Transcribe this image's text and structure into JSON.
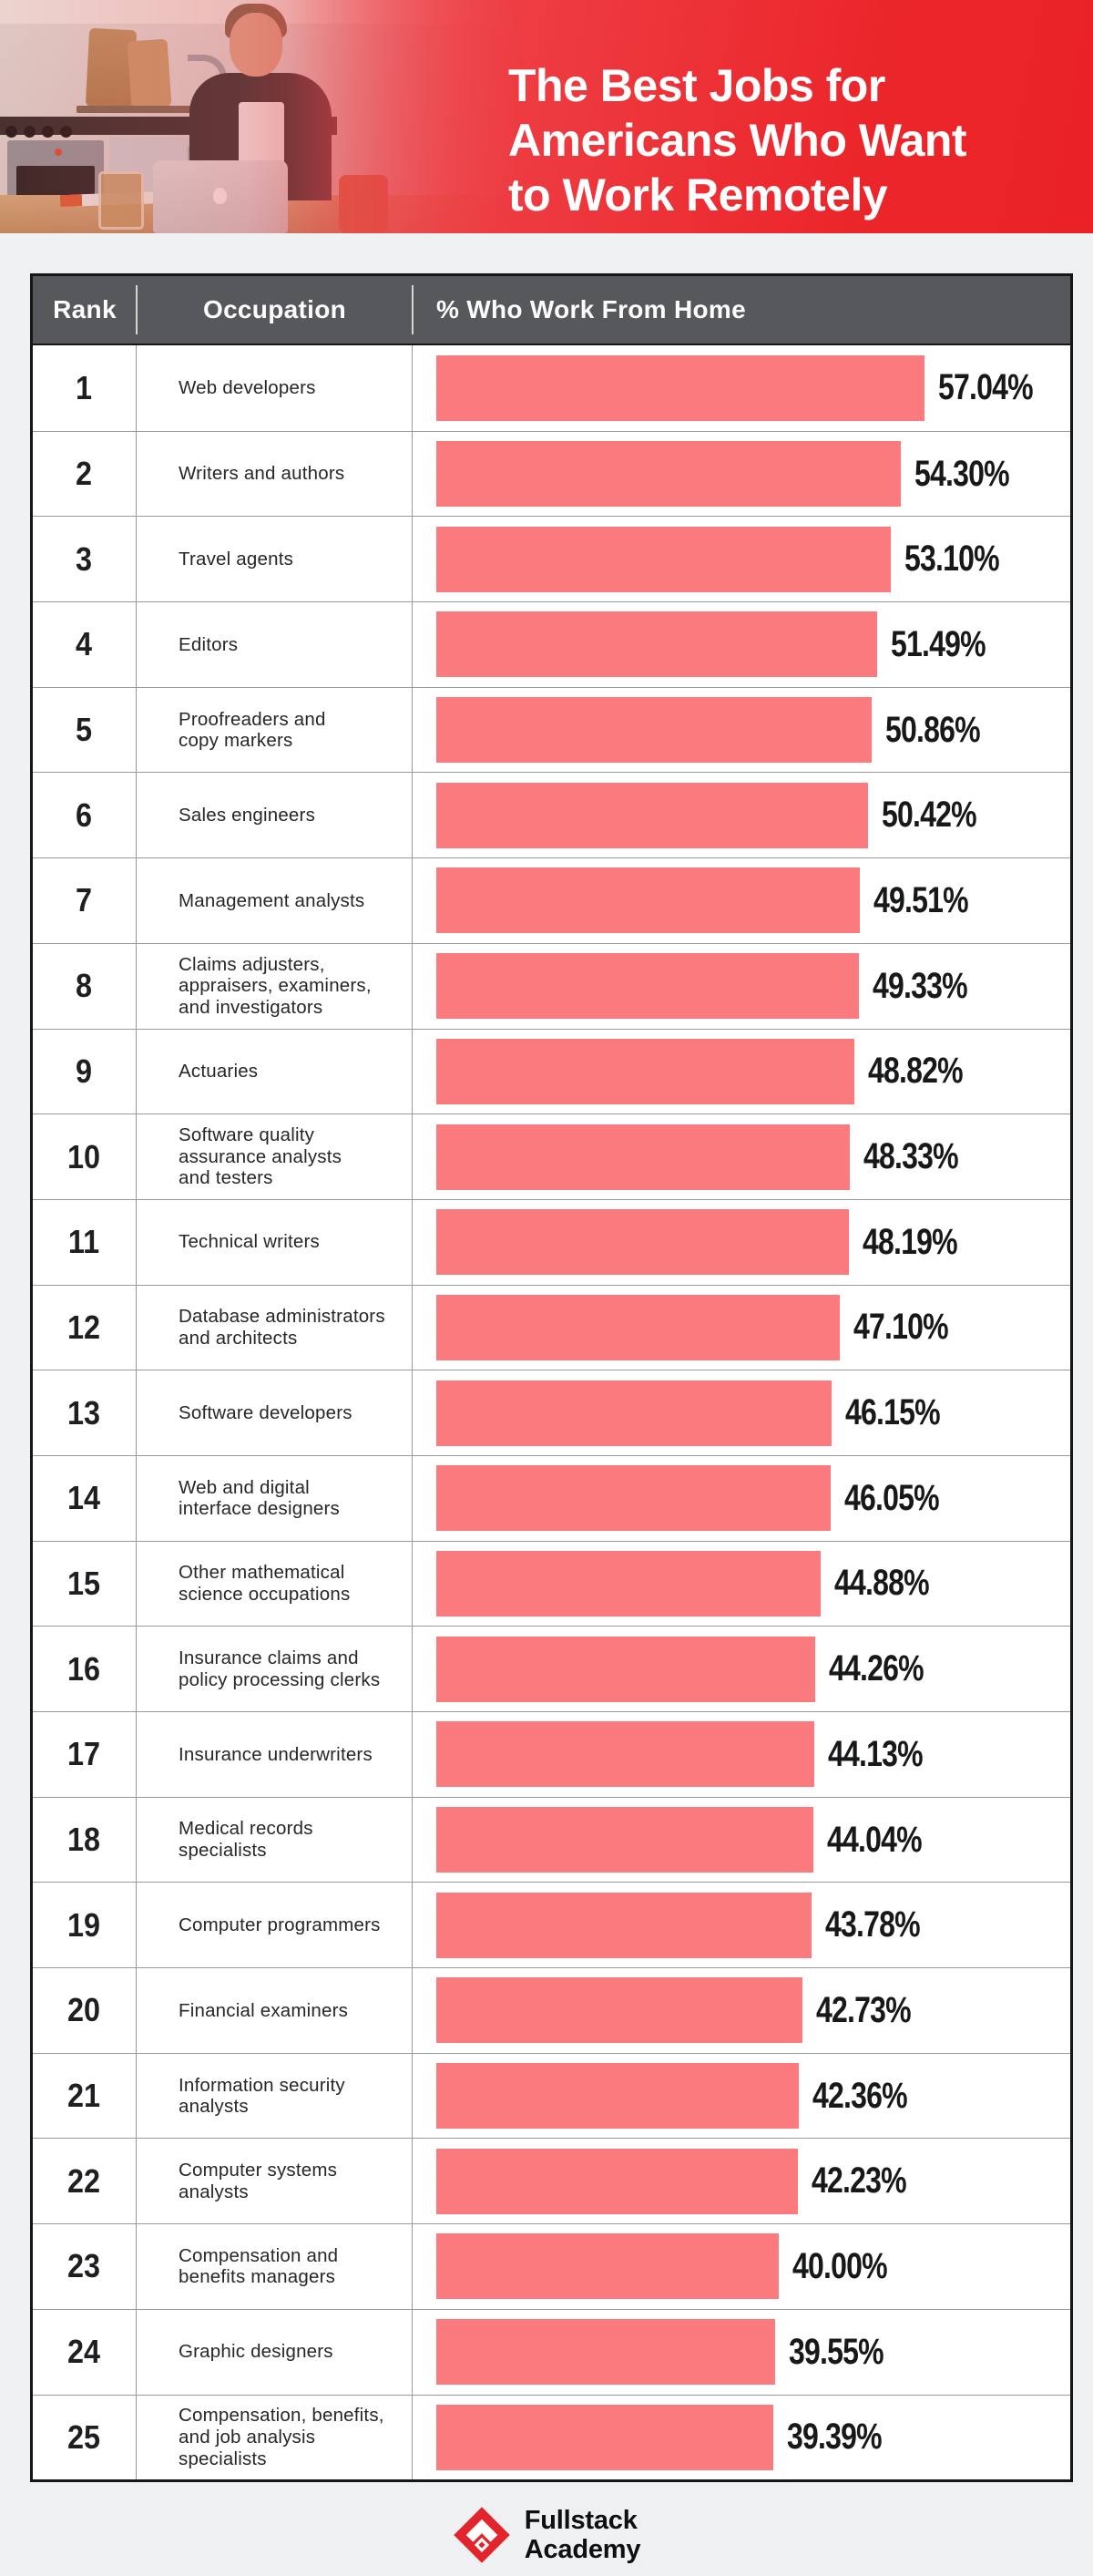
{
  "banner": {
    "title_lines": [
      "The Best Jobs for",
      "Americans Who Want",
      "to Work Remotely"
    ]
  },
  "table": {
    "header": {
      "rank": "Rank",
      "occupation": "Occupation",
      "percent": "% Who Work From Home"
    }
  },
  "chart_data": {
    "type": "bar",
    "orientation": "horizontal",
    "title": "The Best Jobs for Americans Who Want to Work Remotely",
    "xlabel": "% Who Work From Home",
    "ylabel": "Occupation",
    "xlim": [
      0,
      60
    ],
    "grid": false,
    "legend": "none",
    "bar_color": "#FB7A7E",
    "ranks": [
      "1",
      "2",
      "3",
      "4",
      "5",
      "6",
      "7",
      "8",
      "9",
      "10",
      "11",
      "12",
      "13",
      "14",
      "15",
      "16",
      "17",
      "18",
      "19",
      "20",
      "21",
      "22",
      "23",
      "24",
      "25"
    ],
    "categories": [
      "Web developers",
      "Writers and authors",
      "Travel agents",
      "Editors",
      "Proofreaders and\ncopy markers",
      "Sales engineers",
      "Management analysts",
      "Claims adjusters,\nappraisers, examiners,\nand investigators",
      "Actuaries",
      "Software quality\nassurance analysts\nand testers",
      "Technical writers",
      "Database administrators\nand architects",
      "Software developers",
      "Web and digital\ninterface designers",
      "Other mathematical\nscience occupations",
      "Insurance claims and\npolicy processing clerks",
      "Insurance underwriters",
      "Medical records\nspecialists",
      "Computer programmers",
      "Financial examiners",
      "Information security\nanalysts",
      "Computer systems\nanalysts",
      "Compensation and\nbenefits managers",
      "Graphic designers",
      "Compensation, benefits,\nand job analysis\nspecialists"
    ],
    "values": [
      57.04,
      54.3,
      53.1,
      51.49,
      50.86,
      50.42,
      49.51,
      49.33,
      48.82,
      48.33,
      48.19,
      47.1,
      46.15,
      46.05,
      44.88,
      44.26,
      44.13,
      44.04,
      43.78,
      42.73,
      42.36,
      42.23,
      40.0,
      39.55,
      39.39
    ],
    "value_labels": [
      "57.04%",
      "54.30%",
      "53.10%",
      "51.49%",
      "50.86%",
      "50.42%",
      "49.51%",
      "49.33%",
      "48.82%",
      "48.33%",
      "48.19%",
      "47.10%",
      "46.15%",
      "46.05%",
      "44.88%",
      "44.26%",
      "44.13%",
      "44.04%",
      "43.78%",
      "42.73%",
      "42.36%",
      "42.23%",
      "40.00%",
      "39.55%",
      "39.39%"
    ]
  },
  "footer": {
    "brand_line1": "Fullstack",
    "brand_line2": "Academy"
  },
  "colors": {
    "page_bg": "#EEF0F1",
    "banner_red": "#EB2227",
    "table_header_bg": "#57585C",
    "bar": "#FB7A7E",
    "table_border": "#161616",
    "row_divider": "#98999B",
    "logo_red": "#E2242D",
    "text_dark": "#1B1C1E"
  }
}
